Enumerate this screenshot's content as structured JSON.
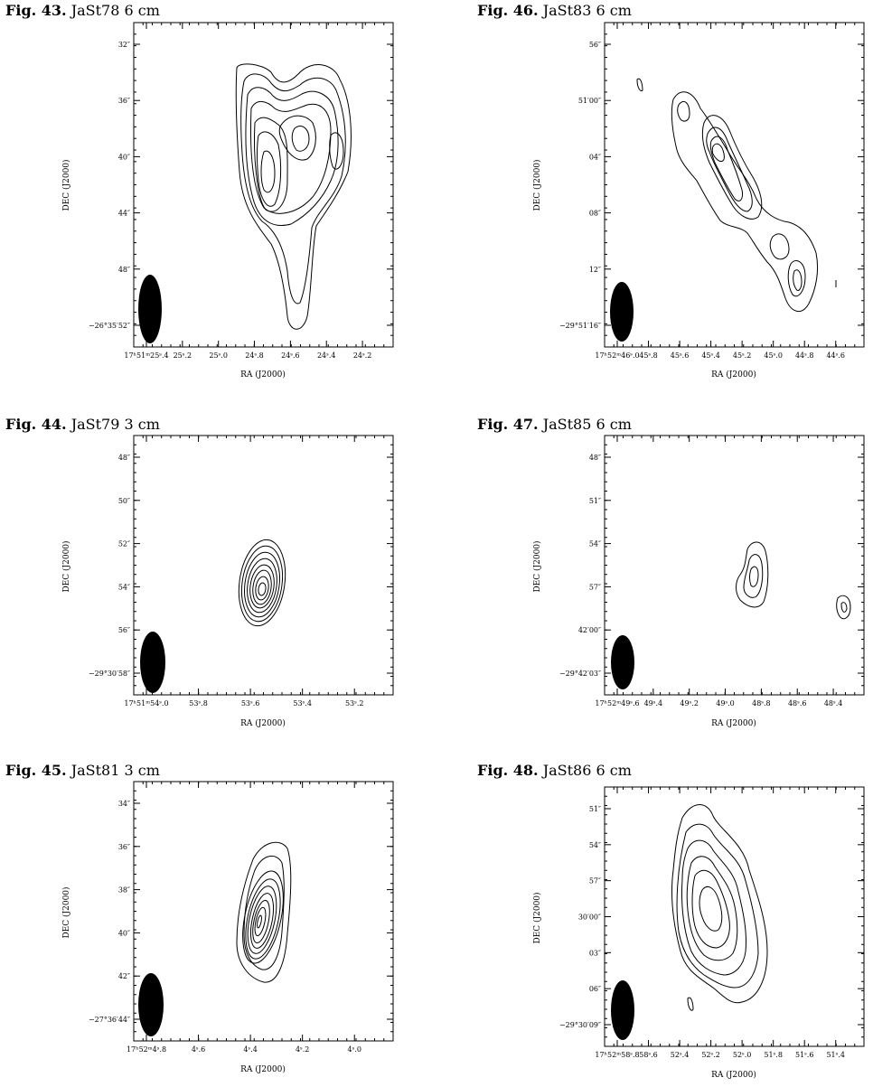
{
  "figures": [
    {
      "id": "fig43",
      "caption_label": "Fig. 43.",
      "caption_text": "JaSt78 6 cm",
      "chart_data": {
        "type": "contour",
        "xlabel": "RA (J2000)",
        "ylabel": "DEC (J2000)",
        "xticks": [
          "17h51m25s4",
          "25s2",
          "25s0",
          "24s8",
          "24s6",
          "24s4",
          "24s2"
        ],
        "yticks": [
          "-26°35'52\"",
          "48\"",
          "44\"",
          "40\"",
          "36\"",
          "32\""
        ],
        "x_tick_labels": [
          "17ʰ51ᵐ25ˢ.4",
          "25ˢ.2",
          "25ˢ.0",
          "24ˢ.8",
          "24ˢ.6",
          "24ˢ.4",
          "24ˢ.2"
        ],
        "y_tick_labels": [
          "−26°35′52″",
          "48″",
          "44″",
          "40″",
          "36″",
          "32″"
        ],
        "beam": "filled ellipse, lower-left"
      }
    },
    {
      "id": "fig46",
      "caption_label": "Fig. 46.",
      "caption_text": "JaSt83 6 cm",
      "chart_data": {
        "type": "contour",
        "xlabel": "RA (J2000)",
        "ylabel": "DEC (J2000)",
        "x_tick_labels": [
          "17ʰ52ᵐ46ˢ.0",
          "45ˢ.8",
          "45ˢ.6",
          "45ˢ.4",
          "45ˢ.2",
          "45ˢ.0",
          "44ˢ.8",
          "44ˢ.6"
        ],
        "y_tick_labels": [
          "−29°51′16″",
          "12″",
          "08″",
          "04″",
          "51′00″",
          "56″"
        ],
        "beam": "filled ellipse, lower-left"
      }
    },
    {
      "id": "fig44",
      "caption_label": "Fig. 44.",
      "caption_text": "JaSt79 3 cm",
      "chart_data": {
        "type": "contour",
        "xlabel": "RA (J2000)",
        "ylabel": "DEC (J2000)",
        "x_tick_labels": [
          "17ʰ51ᵐ54ˢ.0",
          "53ˢ.8",
          "53ˢ.6",
          "53ˢ.4",
          "53ˢ.2"
        ],
        "y_tick_labels": [
          "−29°30′58″",
          "56″",
          "54″",
          "52″",
          "50″",
          "48″"
        ],
        "beam": "filled ellipse, lower-left"
      }
    },
    {
      "id": "fig47",
      "caption_label": "Fig. 47.",
      "caption_text": "JaSt85 6 cm",
      "chart_data": {
        "type": "contour",
        "xlabel": "RA (J2000)",
        "ylabel": "DEC (J2000)",
        "x_tick_labels": [
          "17ʰ52ᵐ49ˢ.6",
          "49ˢ.4",
          "49ˢ.2",
          "49ˢ.0",
          "48ˢ.8",
          "48ˢ.6",
          "48ˢ.4"
        ],
        "y_tick_labels": [
          "−29°42′03″",
          "42′00″",
          "57″",
          "54″",
          "51″",
          "48″"
        ],
        "beam": "filled ellipse, lower-left"
      }
    },
    {
      "id": "fig45",
      "caption_label": "Fig. 45.",
      "caption_text": "JaSt81 3 cm",
      "chart_data": {
        "type": "contour",
        "xlabel": "RA (J2000)",
        "ylabel": "DEC (J2000)",
        "x_tick_labels": [
          "17ʰ52ᵐ4ˢ.8",
          "4ˢ.6",
          "4ˢ.4",
          "4ˢ.2",
          "4ˢ.0"
        ],
        "y_tick_labels": [
          "−27°36′44″",
          "42″",
          "40″",
          "38″",
          "36″",
          "34″"
        ],
        "beam": "filled ellipse, lower-left"
      }
    },
    {
      "id": "fig48",
      "caption_label": "Fig. 48.",
      "caption_text": "JaSt86 6 cm",
      "chart_data": {
        "type": "contour",
        "xlabel": "RA (J2000)",
        "ylabel": "DEC (J2000)",
        "x_tick_labels": [
          "17ʰ52ᵐ58ˢ.8",
          "58ˢ.6",
          "52ˢ.4",
          "52ˢ.2",
          "52ˢ.0",
          "51ˢ.8",
          "51ˢ.6",
          "51ˢ.4"
        ],
        "y_tick_labels": [
          "−29°30′09″",
          "06″",
          "03″",
          "30′00″",
          "57″",
          "54″",
          "51″"
        ],
        "beam": "filled ellipse, lower-left"
      }
    }
  ]
}
